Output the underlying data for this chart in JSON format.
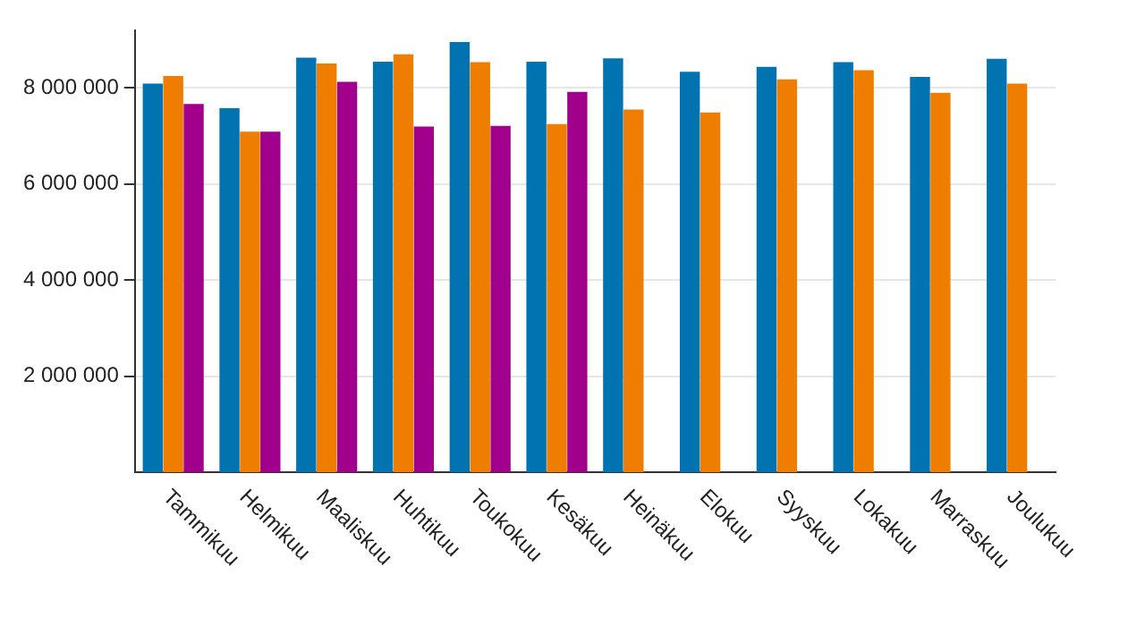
{
  "chart_data": {
    "type": "bar",
    "categories": [
      "Tammikuu",
      "Helmikuu",
      "Maaliskuu",
      "Huhtikuu",
      "Toukokuu",
      "Kesäkuu",
      "Heinäkuu",
      "Elokuu",
      "Syyskuu",
      "Lokakuu",
      "Marraskuu",
      "Joulukuu"
    ],
    "series": [
      {
        "color": "#0073b0",
        "values": [
          8090000,
          7580000,
          8630000,
          8550000,
          8960000,
          8550000,
          8620000,
          8340000,
          8440000,
          8540000,
          8230000,
          8610000
        ]
      },
      {
        "color": "#ee7d00",
        "values": [
          8250000,
          7090000,
          8510000,
          8700000,
          8540000,
          7250000,
          7550000,
          7490000,
          8180000,
          8370000,
          7900000,
          8090000
        ]
      },
      {
        "color": "#a0008c",
        "values": [
          7670000,
          7090000,
          8130000,
          7200000,
          7210000,
          7920000,
          null,
          null,
          null,
          null,
          null,
          null
        ]
      }
    ],
    "ylim": [
      0,
      9200000
    ],
    "yticks": [
      {
        "value": 2000000,
        "label": "2 000 000"
      },
      {
        "value": 4000000,
        "label": "4 000 000"
      },
      {
        "value": 6000000,
        "label": "6 000 000"
      },
      {
        "value": 8000000,
        "label": "8 000 000"
      }
    ],
    "grid": "y",
    "legend": false
  }
}
